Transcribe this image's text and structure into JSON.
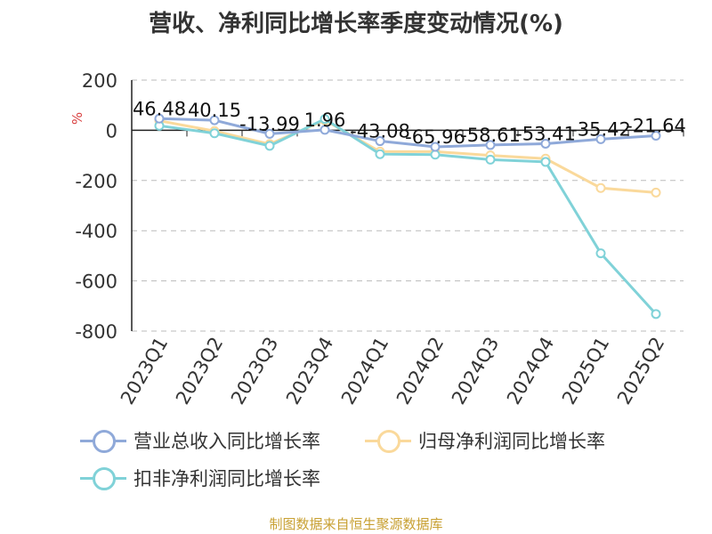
{
  "chart_data": {
    "type": "line",
    "title": "营收、净利同比增长率季度变动情况(%)",
    "ylabel": "%",
    "xlabel": "",
    "categories": [
      "2023Q1",
      "2023Q2",
      "2023Q3",
      "2023Q4",
      "2024Q1",
      "2024Q2",
      "2024Q3",
      "2024Q4",
      "2025Q1",
      "2025Q2"
    ],
    "ylim": [
      -800,
      200
    ],
    "yticks": [
      "200",
      "0",
      "-200",
      "-400",
      "-600",
      "-800"
    ],
    "ytick_values": [
      200,
      0,
      -200,
      -400,
      -600,
      -800
    ],
    "grid": true,
    "legend_position": "bottom",
    "series": [
      {
        "name": "营业总收入同比增长率",
        "color": "#8fa9d9",
        "values": [
          46.48,
          40.15,
          -13.99,
          1.96,
          -43.08,
          -65.96,
          -58.61,
          -53.41,
          -35.42,
          -21.64
        ],
        "labels": [
          "46.48",
          "40.15",
          "-13.99",
          "1.96",
          "-43.08",
          "-65.96",
          "-58.61",
          "-53.41",
          "-35.42",
          "-21.64"
        ]
      },
      {
        "name": "归母净利润同比增长率",
        "color": "#fad99b",
        "values": [
          38,
          -3,
          -55,
          40,
          -85,
          -85,
          -100,
          -113,
          -230,
          -248
        ]
      },
      {
        "name": "扣非净利润同比增长率",
        "color": "#80d2d8",
        "values": [
          18,
          -12,
          -62,
          45,
          -95,
          -97,
          -117,
          -126,
          -490,
          -732
        ]
      }
    ]
  },
  "source_note": "制图数据来自恒生聚源数据库"
}
